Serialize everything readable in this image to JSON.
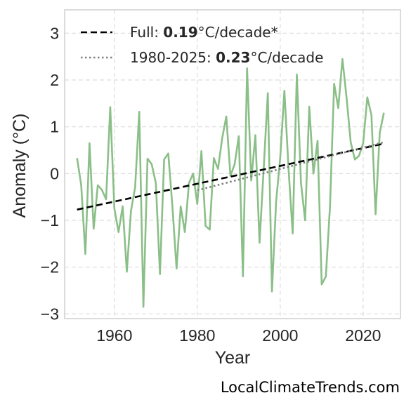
{
  "watermark": "LocalClimateTrends.com",
  "chart_data": {
    "type": "line",
    "xlabel": "Year",
    "ylabel": "Anomaly (°C)",
    "xlim": [
      1948,
      2029
    ],
    "ylim": [
      -3.1,
      3.5
    ],
    "xticks": [
      1960,
      1980,
      2000,
      2020
    ],
    "yticks": [
      -3,
      -2,
      -1,
      0,
      1,
      2,
      3
    ],
    "yticklabels": [
      "−3",
      "−2",
      "−1",
      "0",
      "1",
      "2",
      "3"
    ],
    "grid": true,
    "legend_position": "upper-left",
    "series": [
      {
        "kind": "data",
        "color": "#8bbf88",
        "x": [
          1951,
          1952,
          1953,
          1954,
          1955,
          1956,
          1957,
          1958,
          1959,
          1960,
          1961,
          1962,
          1963,
          1964,
          1965,
          1966,
          1967,
          1968,
          1969,
          1970,
          1971,
          1972,
          1973,
          1974,
          1975,
          1976,
          1977,
          1978,
          1979,
          1980,
          1981,
          1982,
          1983,
          1984,
          1985,
          1986,
          1987,
          1988,
          1989,
          1990,
          1991,
          1992,
          1993,
          1994,
          1995,
          1996,
          1997,
          1998,
          1999,
          2000,
          2001,
          2002,
          2003,
          2004,
          2005,
          2006,
          2007,
          2008,
          2009,
          2010,
          2011,
          2012,
          2013,
          2014,
          2015,
          2016,
          2017,
          2018,
          2019,
          2020,
          2021,
          2022,
          2023,
          2024,
          2025
        ],
        "y": [
          0.33,
          -0.25,
          -1.72,
          0.65,
          -1.18,
          -0.25,
          -0.35,
          -0.55,
          1.42,
          -0.75,
          -1.25,
          -0.7,
          -2.1,
          -0.8,
          -0.3,
          1.32,
          -2.85,
          0.32,
          0.2,
          -0.2,
          -2.15,
          0.3,
          0.43,
          -0.7,
          -2.03,
          -0.7,
          -1.25,
          -0.2,
          0.0,
          -0.65,
          0.48,
          -1.12,
          -1.2,
          0.33,
          0.1,
          0.75,
          1.22,
          -0.05,
          0.2,
          0.8,
          -2.2,
          2.25,
          -0.15,
          0.82,
          -1.48,
          0.1,
          1.72,
          -2.52,
          -0.6,
          0.35,
          1.77,
          0.1,
          -1.28,
          2.12,
          -0.2,
          -1.0,
          1.43,
          0.0,
          0.7,
          -2.37,
          -2.2,
          -0.7,
          1.92,
          1.4,
          2.45,
          1.62,
          0.67,
          0.3,
          0.38,
          0.65,
          1.63,
          1.25,
          -0.87,
          0.87,
          1.3
        ]
      },
      {
        "kind": "trend",
        "name": "Full",
        "value": "0.19",
        "unit": "°C/decade*",
        "color": "#000000",
        "dash": "dashed",
        "x": [
          1951,
          2025
        ],
        "y": [
          -0.77,
          0.64
        ]
      },
      {
        "kind": "trend",
        "name": "1980-2025",
        "value": "0.23",
        "unit": "°C/decade",
        "color": "#808080",
        "dash": "dotted",
        "x": [
          1980,
          2025
        ],
        "y": [
          -0.36,
          0.67
        ]
      }
    ]
  }
}
